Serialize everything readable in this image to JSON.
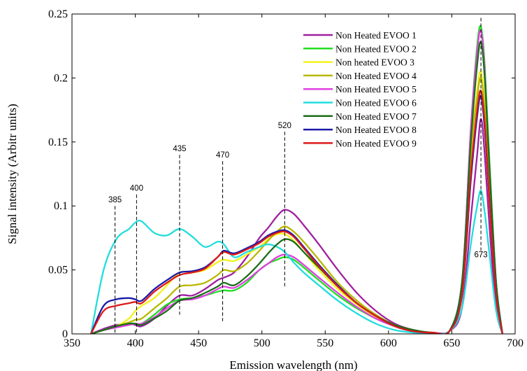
{
  "chart_data": {
    "type": "line",
    "xlabel": "Emission wavelength (nm)",
    "ylabel": "Signal intensity (Arbitr units)",
    "xlim": [
      350,
      700
    ],
    "ylim": [
      0,
      0.25
    ],
    "xticks": [
      350,
      400,
      450,
      500,
      550,
      600,
      650,
      700
    ],
    "yticks": [
      0,
      0.05,
      0.1,
      0.15,
      0.2,
      0.25
    ],
    "ytick_labels": [
      "0",
      "0.05",
      "0.1",
      "0.15",
      "0.2",
      "0.25"
    ],
    "grid": false,
    "legend_position": "top-right",
    "x": [
      365,
      375,
      385,
      395,
      400,
      405,
      415,
      425,
      435,
      445,
      455,
      465,
      470,
      478,
      488,
      498,
      505,
      512,
      518,
      525,
      533,
      545,
      560,
      575,
      590,
      605,
      620,
      635,
      648,
      658,
      665,
      670,
      673,
      676,
      680,
      685,
      690
    ],
    "series": [
      {
        "name": "Non Heated EVOO 1",
        "color": "#a020a0",
        "values": [
          0,
          0.004,
          0.007,
          0.008,
          0.007,
          0.006,
          0.012,
          0.022,
          0.03,
          0.03,
          0.035,
          0.042,
          0.044,
          0.048,
          0.06,
          0.075,
          0.083,
          0.092,
          0.097,
          0.094,
          0.085,
          0.07,
          0.05,
          0.032,
          0.018,
          0.008,
          0.003,
          0.001,
          0.002,
          0.02,
          0.09,
          0.14,
          0.168,
          0.14,
          0.08,
          0.02,
          0
        ]
      },
      {
        "name": "Non Heated EVOO 2",
        "color": "#22dd22",
        "values": [
          0,
          0.003,
          0.006,
          0.008,
          0.008,
          0.008,
          0.015,
          0.023,
          0.027,
          0.028,
          0.03,
          0.033,
          0.034,
          0.034,
          0.04,
          0.05,
          0.055,
          0.058,
          0.06,
          0.058,
          0.052,
          0.042,
          0.03,
          0.02,
          0.012,
          0.006,
          0.002,
          0.001,
          0.002,
          0.04,
          0.16,
          0.225,
          0.24,
          0.21,
          0.13,
          0.04,
          0
        ]
      },
      {
        "name": "Non heated EVOO 3",
        "color": "#f2f21a",
        "values": [
          0,
          0.003,
          0.006,
          0.012,
          0.018,
          0.022,
          0.028,
          0.038,
          0.048,
          0.048,
          0.05,
          0.056,
          0.058,
          0.057,
          0.062,
          0.068,
          0.074,
          0.078,
          0.078,
          0.073,
          0.064,
          0.05,
          0.035,
          0.023,
          0.013,
          0.006,
          0.002,
          0.001,
          0.002,
          0.035,
          0.14,
          0.19,
          0.205,
          0.18,
          0.11,
          0.035,
          0
        ]
      },
      {
        "name": "Non Heated EVOO 4",
        "color": "#b8b800",
        "values": [
          0,
          0.003,
          0.006,
          0.009,
          0.011,
          0.012,
          0.02,
          0.028,
          0.037,
          0.038,
          0.04,
          0.046,
          0.05,
          0.049,
          0.055,
          0.065,
          0.073,
          0.08,
          0.084,
          0.08,
          0.072,
          0.058,
          0.04,
          0.026,
          0.015,
          0.007,
          0.003,
          0.001,
          0.002,
          0.035,
          0.14,
          0.185,
          0.2,
          0.175,
          0.11,
          0.035,
          0
        ]
      },
      {
        "name": "Non Heated EVOO 5",
        "color": "#e040e0",
        "values": [
          0,
          0.003,
          0.005,
          0.007,
          0.008,
          0.008,
          0.013,
          0.02,
          0.026,
          0.027,
          0.03,
          0.035,
          0.037,
          0.036,
          0.042,
          0.05,
          0.055,
          0.06,
          0.062,
          0.06,
          0.054,
          0.044,
          0.032,
          0.021,
          0.012,
          0.006,
          0.002,
          0.001,
          0.002,
          0.04,
          0.16,
          0.22,
          0.237,
          0.205,
          0.125,
          0.04,
          0
        ]
      },
      {
        "name": "Non Heated EVOO 6",
        "color": "#22dddd",
        "values": [
          0,
          0.05,
          0.074,
          0.082,
          0.087,
          0.088,
          0.079,
          0.077,
          0.082,
          0.076,
          0.068,
          0.072,
          0.07,
          0.06,
          0.064,
          0.068,
          0.07,
          0.068,
          0.064,
          0.056,
          0.048,
          0.038,
          0.026,
          0.016,
          0.008,
          0.003,
          0.001,
          0,
          0.002,
          0.02,
          0.07,
          0.1,
          0.112,
          0.095,
          0.06,
          0.018,
          0
        ]
      },
      {
        "name": "Non Heated EVOO 7",
        "color": "#1a6e1a",
        "values": [
          0,
          0.003,
          0.006,
          0.008,
          0.008,
          0.007,
          0.012,
          0.018,
          0.026,
          0.028,
          0.032,
          0.037,
          0.04,
          0.038,
          0.045,
          0.055,
          0.063,
          0.07,
          0.074,
          0.072,
          0.064,
          0.052,
          0.037,
          0.024,
          0.014,
          0.007,
          0.003,
          0.001,
          0.002,
          0.04,
          0.15,
          0.21,
          0.228,
          0.2,
          0.125,
          0.04,
          0
        ]
      },
      {
        "name": "Non Heated EVOO 8",
        "color": "#1a1aaa",
        "values": [
          0,
          0.022,
          0.027,
          0.028,
          0.027,
          0.026,
          0.035,
          0.042,
          0.048,
          0.049,
          0.052,
          0.06,
          0.065,
          0.063,
          0.067,
          0.072,
          0.077,
          0.08,
          0.081,
          0.077,
          0.068,
          0.054,
          0.038,
          0.024,
          0.014,
          0.006,
          0.002,
          0.001,
          0.002,
          0.03,
          0.12,
          0.17,
          0.186,
          0.16,
          0.1,
          0.03,
          0
        ]
      },
      {
        "name": "Non Heated EVOO 9",
        "color": "#dd1a1a",
        "values": [
          0,
          0.018,
          0.022,
          0.024,
          0.025,
          0.024,
          0.033,
          0.04,
          0.046,
          0.048,
          0.051,
          0.06,
          0.064,
          0.062,
          0.066,
          0.071,
          0.076,
          0.079,
          0.08,
          0.076,
          0.067,
          0.053,
          0.037,
          0.024,
          0.014,
          0.006,
          0.002,
          0.001,
          0.002,
          0.03,
          0.125,
          0.175,
          0.19,
          0.165,
          0.1,
          0.03,
          0
        ]
      }
    ],
    "annotations": [
      {
        "label": "385",
        "x": 384,
        "y_top": 0.1,
        "y_bottom": 0
      },
      {
        "label": "400",
        "x": 401,
        "y_top": 0.109,
        "y_bottom": 0
      },
      {
        "label": "435",
        "x": 435,
        "y_top": 0.14,
        "y_bottom": 0.015
      },
      {
        "label": "470",
        "x": 469,
        "y_top": 0.135,
        "y_bottom": 0.01
      },
      {
        "label": "520",
        "x": 518,
        "y_top": 0.158,
        "y_bottom": 0.036
      },
      {
        "label": "673",
        "x": 673,
        "y_top": 0.247,
        "y_bottom": 0.065
      }
    ]
  }
}
